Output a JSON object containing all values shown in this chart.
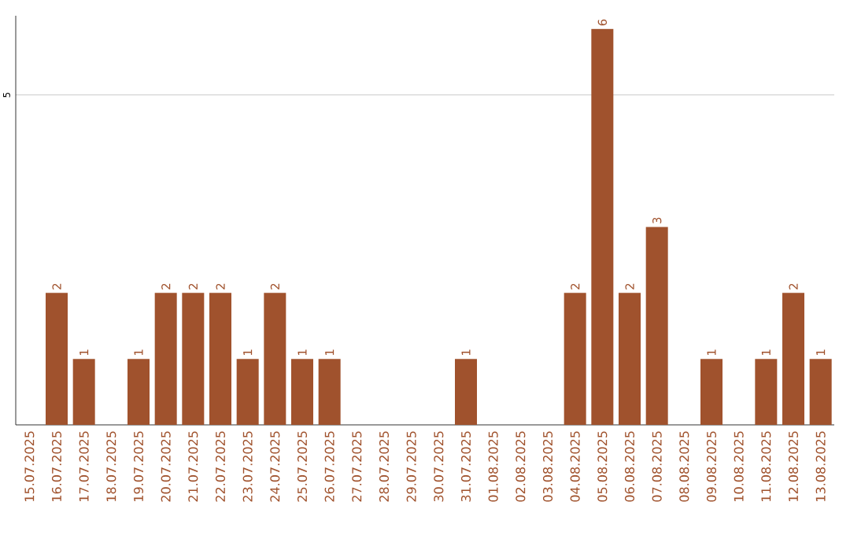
{
  "chart_data": {
    "type": "bar",
    "categories": [
      "15.07.2025",
      "16.07.2025",
      "17.07.2025",
      "18.07.2025",
      "19.07.2025",
      "20.07.2025",
      "21.07.2025",
      "22.07.2025",
      "23.07.2025",
      "24.07.2025",
      "25.07.2025",
      "26.07.2025",
      "27.07.2025",
      "28.07.2025",
      "29.07.2025",
      "30.07.2025",
      "31.07.2025",
      "01.08.2025",
      "02.08.2025",
      "03.08.2025",
      "04.08.2025",
      "05.08.2025",
      "06.08.2025",
      "07.08.2025",
      "08.08.2025",
      "09.08.2025",
      "10.08.2025",
      "11.08.2025",
      "12.08.2025",
      "13.08.2025"
    ],
    "values": [
      0,
      2,
      1,
      0,
      1,
      2,
      2,
      2,
      1,
      2,
      1,
      1,
      0,
      0,
      0,
      0,
      1,
      0,
      0,
      0,
      2,
      6,
      2,
      3,
      0,
      1,
      0,
      1,
      2,
      1
    ],
    "value_labels": [
      null,
      "2",
      "1",
      null,
      "1",
      "2",
      "2",
      "2",
      "1",
      "2",
      "1",
      "1",
      null,
      null,
      null,
      null,
      "1",
      null,
      null,
      null,
      "2",
      "6",
      "2",
      "3",
      null,
      "1",
      null,
      "1",
      "2",
      "1"
    ],
    "color": "#a0522d",
    "ylim": [
      0,
      6.2
    ],
    "yticks": [
      5
    ],
    "grid": "y"
  }
}
